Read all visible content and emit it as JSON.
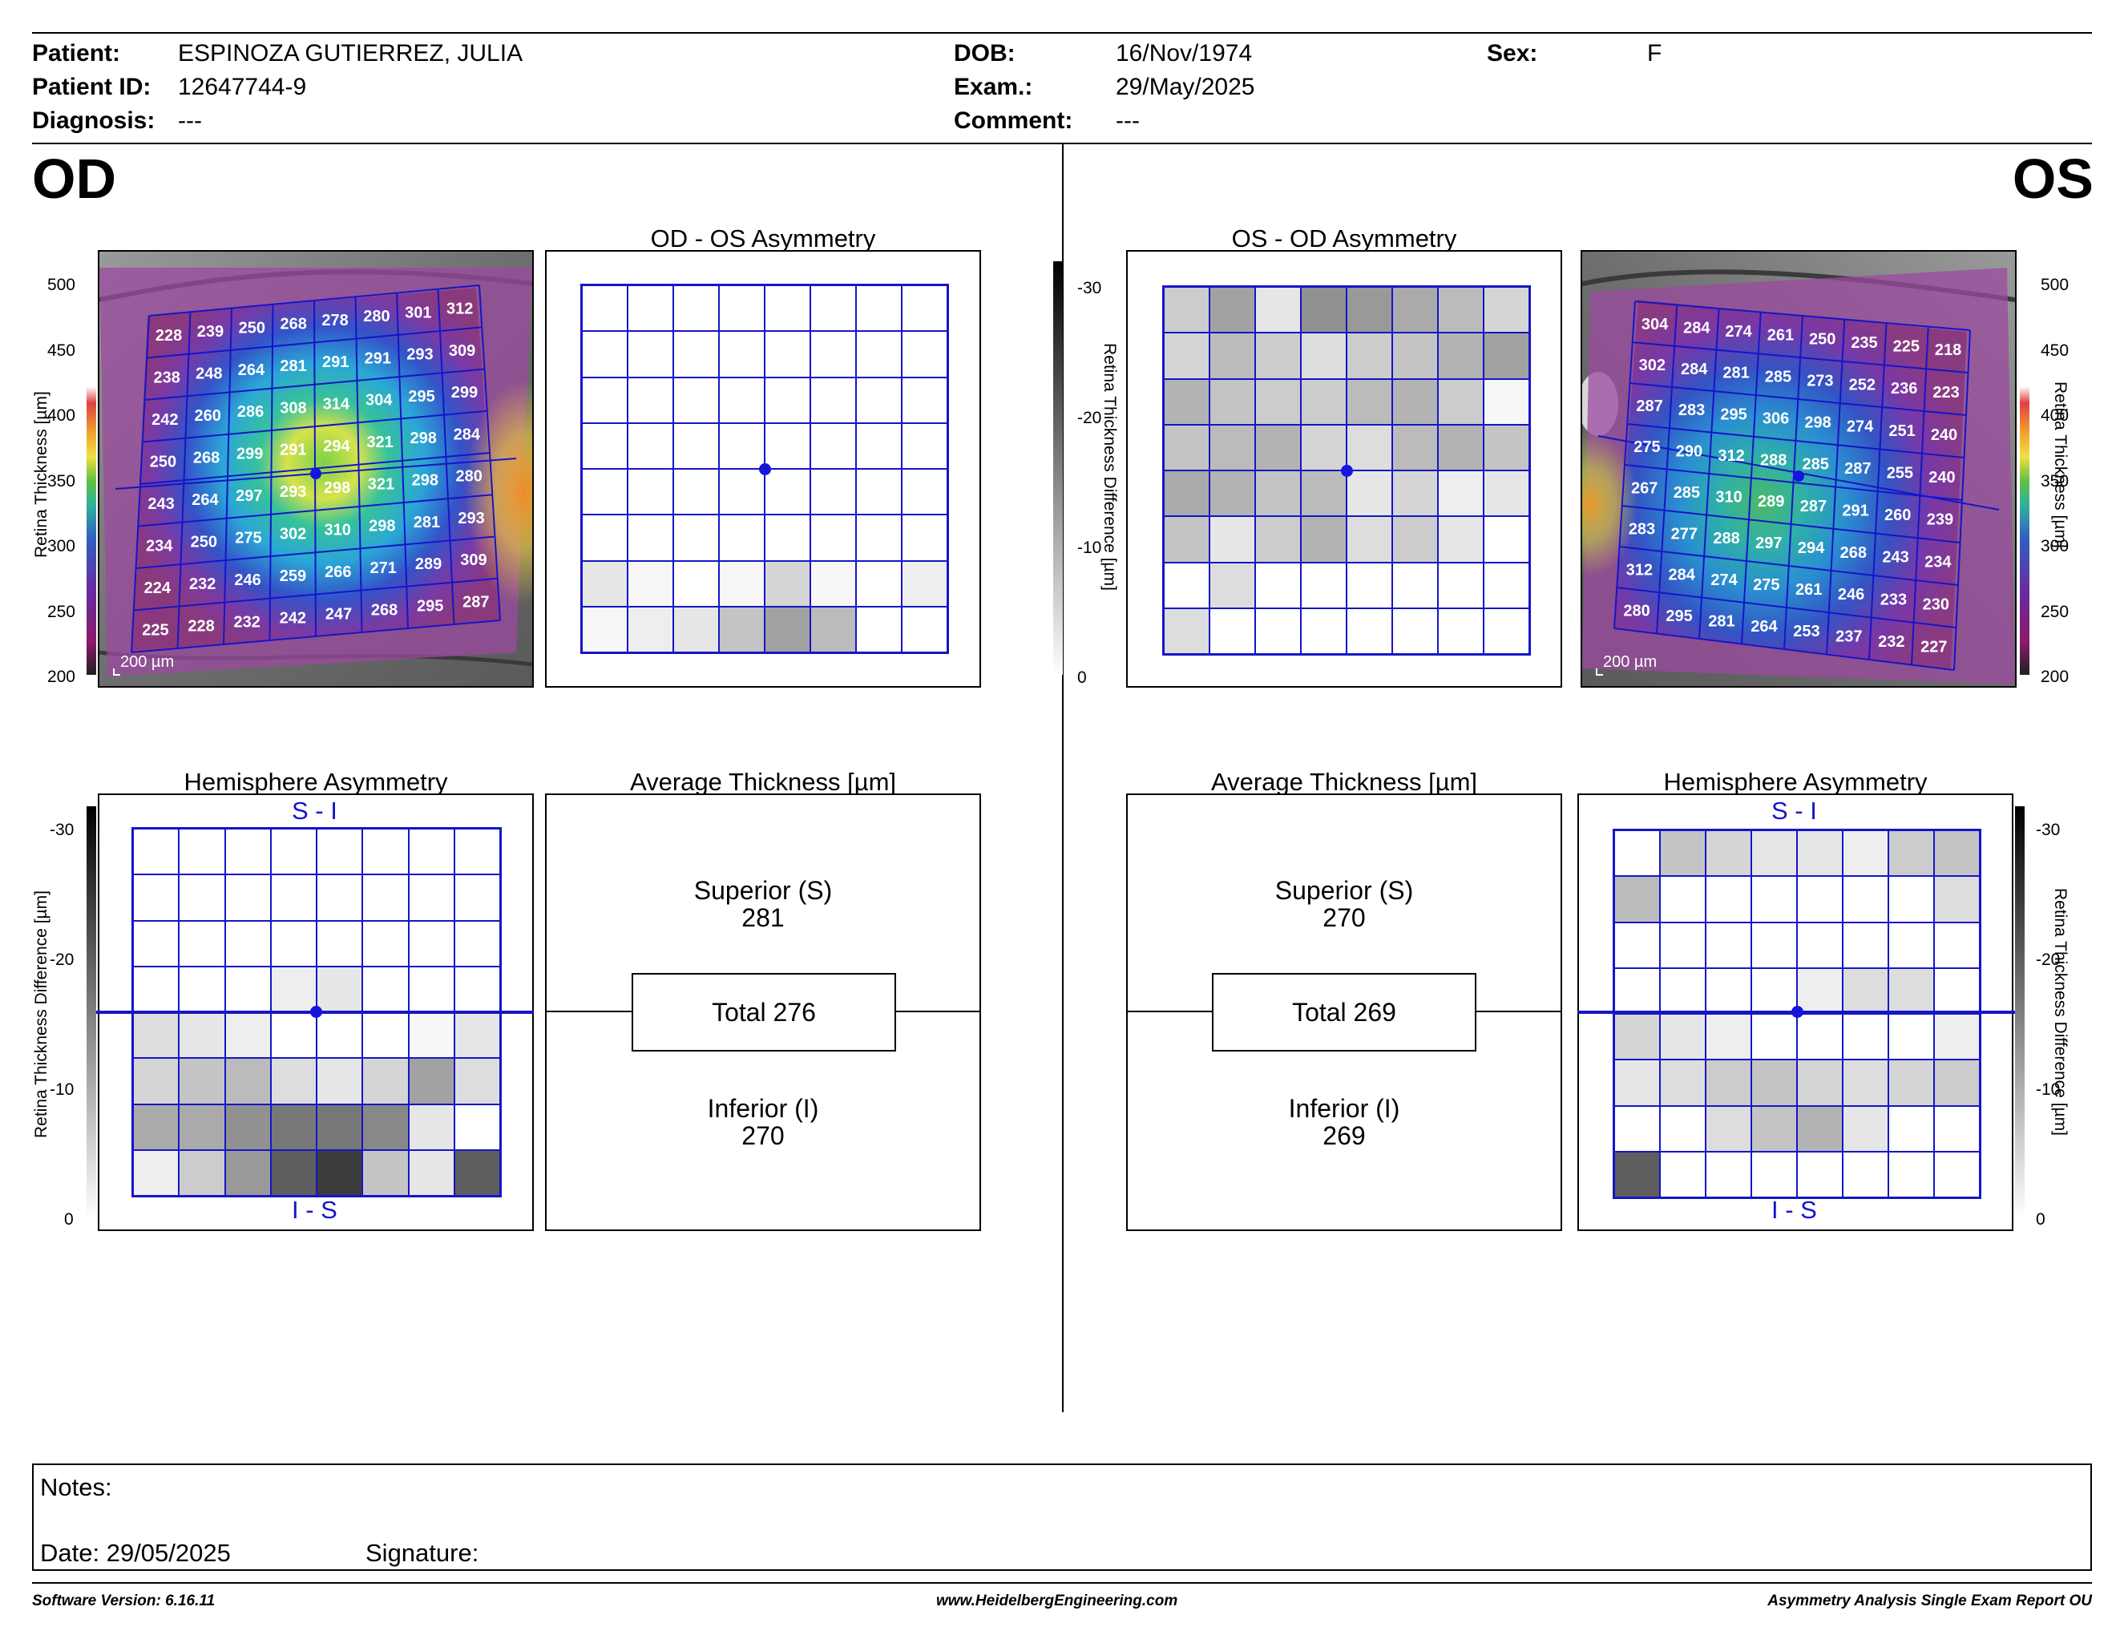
{
  "header": {
    "patient_label": "Patient:",
    "patient_value": "ESPINOZA GUTIERREZ, JULIA",
    "patient_id_label": "Patient ID:",
    "patient_id_value": "12647744-9",
    "diagnosis_label": "Diagnosis:",
    "diagnosis_value": "---",
    "dob_label": "DOB:",
    "dob_value": "16/Nov/1974",
    "exam_label": "Exam.:",
    "exam_value": "29/May/2025",
    "comment_label": "Comment:",
    "comment_value": "---",
    "sex_label": "Sex:",
    "sex_value": "F"
  },
  "od": {
    "label": "OD",
    "asym_title": "OD - OS Asymmetry",
    "hemi_title": "Hemisphere Asymmetry",
    "avg_title": "Average Thickness [µm]",
    "superior_label": "Superior (S)",
    "superior_value": "281",
    "total_label": "Total 276",
    "inferior_label": "Inferior (I)",
    "inferior_value": "270",
    "scale_bar": "200 µm",
    "thickness_grid": [
      [
        228,
        239,
        250,
        268,
        278,
        280,
        301,
        312
      ],
      [
        238,
        248,
        264,
        281,
        291,
        291,
        293,
        309
      ],
      [
        242,
        260,
        286,
        308,
        314,
        304,
        295,
        299
      ],
      [
        250,
        268,
        299,
        291,
        294,
        321,
        298,
        284
      ],
      [
        243,
        264,
        297,
        293,
        298,
        321,
        298,
        280
      ],
      [
        234,
        250,
        275,
        302,
        310,
        298,
        281,
        293
      ],
      [
        224,
        232,
        246,
        259,
        266,
        271,
        289,
        309
      ],
      [
        225,
        228,
        232,
        242,
        247,
        268,
        295,
        287
      ]
    ],
    "asym_gray": [
      [
        0,
        0,
        0,
        0,
        0,
        0,
        0,
        0
      ],
      [
        0,
        0,
        0,
        0,
        0,
        0,
        0,
        0
      ],
      [
        0,
        0,
        0,
        0,
        0,
        0,
        0,
        0
      ],
      [
        0,
        0,
        0,
        0,
        0,
        0,
        0,
        0
      ],
      [
        0,
        0,
        0,
        0,
        0,
        0,
        0,
        0
      ],
      [
        0,
        0,
        0,
        0,
        0,
        0,
        0,
        0
      ],
      [
        3,
        1,
        0,
        1,
        5,
        1,
        0,
        2
      ],
      [
        1,
        2,
        3,
        7,
        11,
        8,
        0,
        0
      ]
    ],
    "hemi_gray": [
      [
        0,
        0,
        0,
        0,
        0,
        0,
        0,
        0
      ],
      [
        0,
        0,
        0,
        0,
        0,
        0,
        0,
        0
      ],
      [
        0,
        0,
        0,
        0,
        0,
        0,
        0,
        0
      ],
      [
        0,
        0,
        0,
        2,
        3,
        0,
        0,
        0
      ],
      [
        4,
        3,
        2,
        0,
        0,
        0,
        1,
        3
      ],
      [
        5,
        7,
        8,
        4,
        3,
        5,
        11,
        4
      ],
      [
        10,
        10,
        13,
        16,
        16,
        14,
        3,
        0
      ],
      [
        2,
        6,
        12,
        19,
        23,
        7,
        3,
        19
      ]
    ]
  },
  "os": {
    "label": "OS",
    "asym_title": "OS - OD Asymmetry",
    "hemi_title": "Hemisphere Asymmetry",
    "avg_title": "Average Thickness [µm]",
    "superior_label": "Superior (S)",
    "superior_value": "270",
    "total_label": "Total 269",
    "inferior_label": "Inferior (I)",
    "inferior_value": "269",
    "scale_bar": "200 µm",
    "thickness_grid": [
      [
        304,
        284,
        274,
        261,
        250,
        235,
        225,
        218
      ],
      [
        302,
        284,
        281,
        285,
        273,
        252,
        236,
        223
      ],
      [
        287,
        283,
        295,
        306,
        298,
        274,
        251,
        240
      ],
      [
        275,
        290,
        312,
        288,
        285,
        287,
        255,
        240
      ],
      [
        267,
        285,
        310,
        289,
        287,
        291,
        260,
        239
      ],
      [
        283,
        277,
        288,
        297,
        294,
        268,
        243,
        234
      ],
      [
        312,
        284,
        274,
        275,
        261,
        246,
        233,
        230
      ],
      [
        280,
        295,
        281,
        264,
        253,
        237,
        232,
        227
      ]
    ],
    "asym_gray": [
      [
        6,
        11,
        3,
        13,
        12,
        10,
        8,
        5
      ],
      [
        5,
        8,
        6,
        4,
        6,
        7,
        9,
        11
      ],
      [
        9,
        7,
        6,
        6,
        8,
        9,
        6,
        1
      ],
      [
        7,
        8,
        9,
        5,
        4,
        8,
        9,
        7
      ],
      [
        10,
        9,
        7,
        8,
        3,
        5,
        2,
        3
      ],
      [
        7,
        3,
        6,
        9,
        4,
        6,
        3,
        0
      ],
      [
        0,
        4,
        0,
        0,
        0,
        0,
        0,
        0
      ],
      [
        4,
        0,
        0,
        0,
        0,
        0,
        0,
        0
      ]
    ],
    "hemi_gray": [
      [
        0,
        7,
        5,
        3,
        3,
        2,
        6,
        7
      ],
      [
        8,
        0,
        0,
        0,
        0,
        0,
        0,
        4
      ],
      [
        0,
        0,
        0,
        0,
        0,
        0,
        0,
        0
      ],
      [
        0,
        0,
        0,
        0,
        2,
        4,
        4,
        0
      ],
      [
        5,
        3,
        2,
        0,
        0,
        0,
        0,
        2
      ],
      [
        3,
        4,
        6,
        7,
        5,
        4,
        5,
        6
      ],
      [
        0,
        0,
        4,
        7,
        9,
        3,
        0,
        0
      ],
      [
        19,
        0,
        0,
        0,
        0,
        0,
        0,
        0
      ]
    ]
  },
  "scales": {
    "thickness_ticks": [
      "500",
      "450",
      "400",
      "350",
      "300",
      "250",
      "200"
    ],
    "thickness_label": "Retina Thickness [µm]",
    "diff_ticks": [
      "-30",
      "-20",
      "-10",
      "0"
    ],
    "diff_label": "Retina Thickness Difference [µm]"
  },
  "hemi_top_label": "S - I",
  "hemi_bottom_label": "I - S",
  "notes": {
    "notes_label": "Notes:",
    "date_label": "Date: 29/05/2025",
    "signature_label": "Signature:"
  },
  "footer": {
    "software": "Software Version: 6.16.11",
    "website": "www.HeidelbergEngineering.com",
    "report": "Asymmetry Analysis Single Exam Report OU"
  }
}
